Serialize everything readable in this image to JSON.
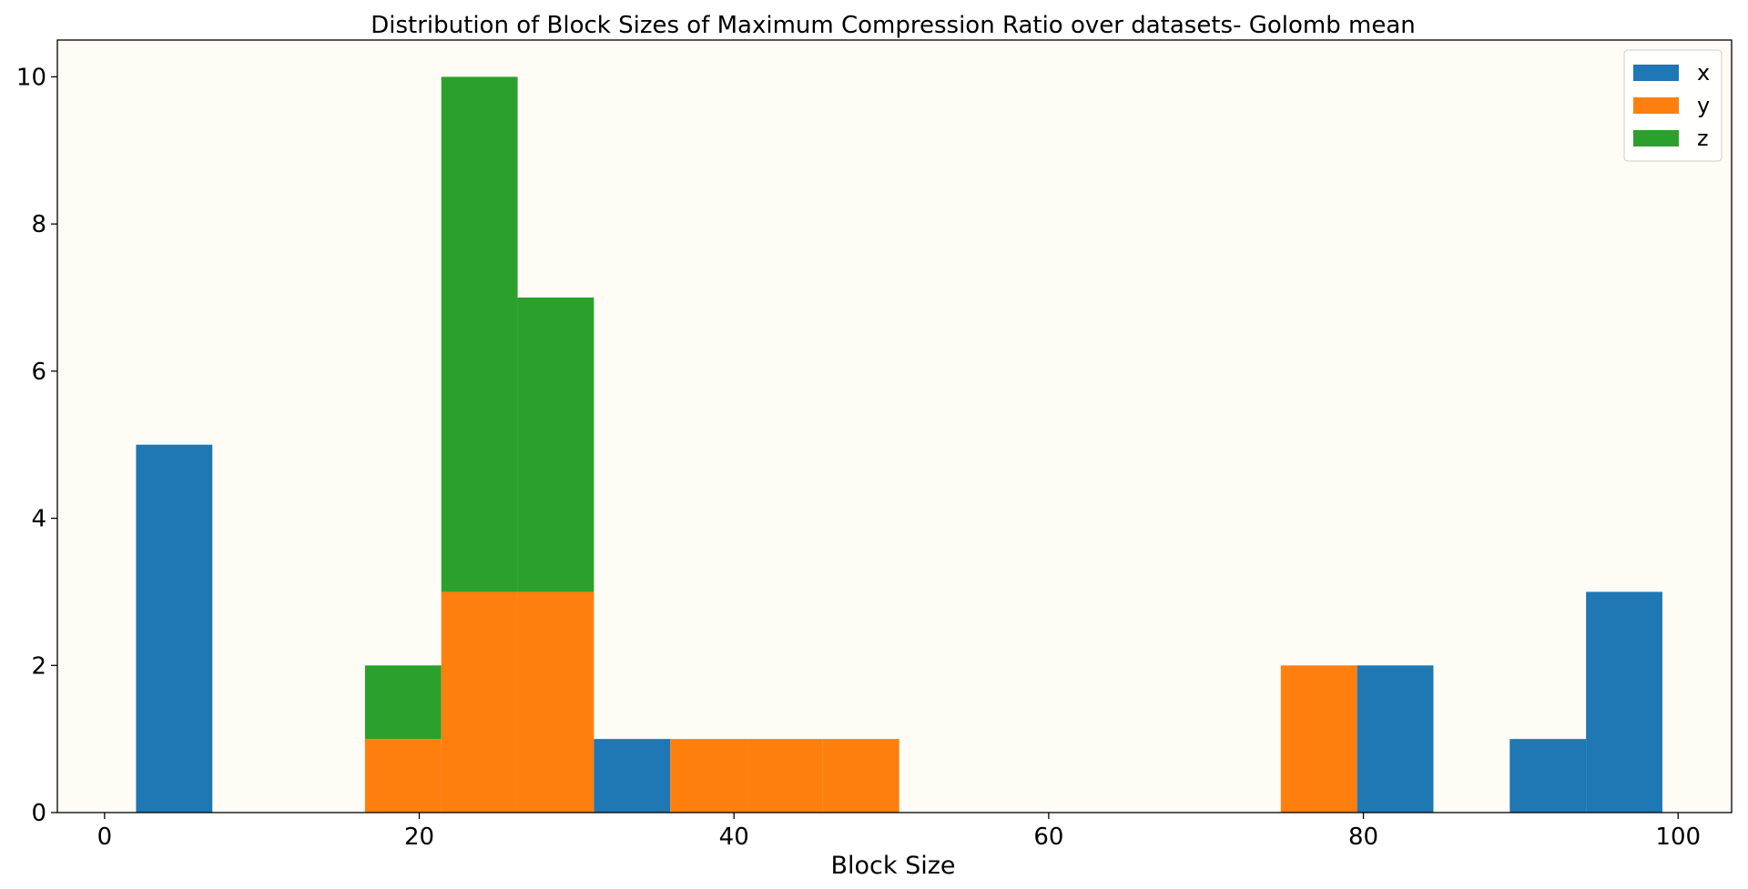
{
  "chart_data": {
    "type": "bar",
    "subtype": "stacked-histogram",
    "title": "Distribution of Block Sizes of Maximum Compression Ratio over datasets- Golomb mean",
    "xlabel": "Block Size",
    "ylabel": "",
    "xlim": [
      -3.0,
      103.4
    ],
    "ylim": [
      0,
      10.5
    ],
    "xticks": [
      0,
      20,
      40,
      60,
      80,
      100
    ],
    "yticks": [
      0,
      2,
      4,
      6,
      8,
      10
    ],
    "bin_edges": [
      2,
      6.85,
      11.7,
      16.55,
      21.4,
      26.25,
      31.1,
      35.95,
      40.8,
      45.65,
      50.5,
      55.35,
      60.2,
      65.05,
      69.9,
      74.75,
      79.6,
      84.45,
      89.3,
      94.15,
      99
    ],
    "series": [
      {
        "name": "x",
        "color": "#1f77b4",
        "values": [
          5,
          0,
          0,
          0,
          0,
          0,
          1,
          0,
          0,
          0,
          0,
          0,
          0,
          0,
          0,
          0,
          2,
          0,
          1,
          3
        ]
      },
      {
        "name": "y",
        "color": "#ff7f0e",
        "values": [
          0,
          0,
          0,
          1,
          3,
          3,
          0,
          1,
          1,
          1,
          0,
          0,
          0,
          0,
          0,
          2,
          0,
          0,
          0,
          0
        ]
      },
      {
        "name": "z",
        "color": "#2ca02c",
        "values": [
          0,
          0,
          0,
          1,
          7,
          4,
          0,
          0,
          0,
          0,
          0,
          0,
          0,
          0,
          0,
          0,
          0,
          0,
          0,
          0
        ]
      }
    ],
    "grid": false,
    "legend_position": "top-right",
    "plot_background": "#fffcf5"
  }
}
